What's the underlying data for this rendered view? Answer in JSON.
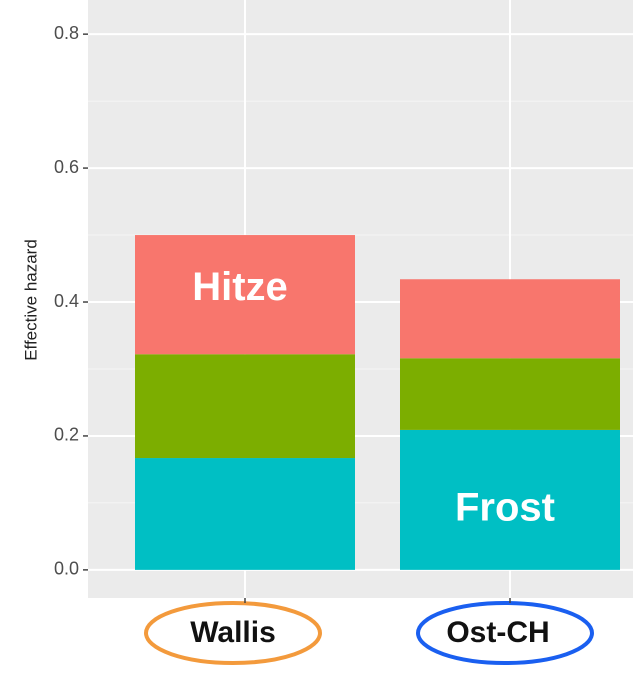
{
  "chart_data": {
    "type": "stacked_bar",
    "y_label": "Effective hazard",
    "categories": [
      "Wallis",
      "Ost-CH"
    ],
    "series": [
      {
        "name": "Frost",
        "color": "#00bfc4",
        "values": [
          0.167,
          0.209
        ]
      },
      {
        "color": "#7cae00",
        "values": [
          0.155,
          0.107
        ]
      },
      {
        "name": "Hitze",
        "color": "#f8766d",
        "values": [
          0.178,
          0.118
        ]
      }
    ],
    "ylim": [
      -0.042,
      0.851
    ],
    "yticks": [
      {
        "value": 0,
        "label": "0.0"
      },
      0.2,
      0.4,
      0.6,
      0.8
    ],
    "grid": true
  }
}
